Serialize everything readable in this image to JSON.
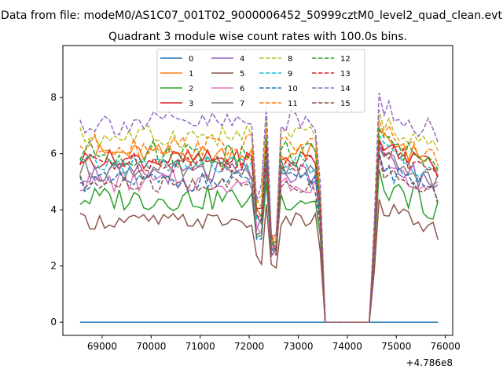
{
  "chart_data": {
    "type": "line",
    "suptitle": "Data from file: modeM0/AS1C07_001T02_9000006452_50999cztM0_level2_quad_clean.evt",
    "title": "Quadrant 3 module wise count rates with 100.0s bins.",
    "xlabel": "",
    "ylabel": "",
    "x_offset_label": "+4.786e8",
    "xlim": [
      68200,
      76150
    ],
    "ylim": [
      -0.47,
      9.85
    ],
    "xticks": [
      69000,
      70000,
      71000,
      72000,
      73000,
      74000,
      75000,
      76000
    ],
    "xtick_labels": [
      "69000",
      "70000",
      "71000",
      "72000",
      "73000",
      "74000",
      "75000",
      "76000"
    ],
    "yticks": [
      0,
      2,
      4,
      6,
      8
    ],
    "ytick_labels": [
      "0",
      "2",
      "4",
      "6",
      "8"
    ],
    "legend": {
      "position": "top-center",
      "columns": 4
    },
    "x_range": {
      "start": 68550,
      "step": 100,
      "end": 75850
    },
    "series": [
      {
        "name": "0",
        "color": "#1f77b4",
        "dash": "solid",
        "base": 0.0,
        "amp": 0.0,
        "dip": 0.0
      },
      {
        "name": "1",
        "color": "#ff7f0e",
        "dash": "solid",
        "base": 6.0,
        "amp": 0.35,
        "dip": 3.0
      },
      {
        "name": "2",
        "color": "#2ca02c",
        "dash": "solid",
        "base": 4.4,
        "amp": 0.45,
        "dip": 2.6
      },
      {
        "name": "3",
        "color": "#d62728",
        "dash": "solid",
        "base": 5.8,
        "amp": 0.35,
        "dip": 2.8
      },
      {
        "name": "4",
        "color": "#9467bd",
        "dash": "solid",
        "base": 5.3,
        "amp": 0.4,
        "dip": 2.5
      },
      {
        "name": "5",
        "color": "#8c564b",
        "dash": "solid",
        "base": 3.6,
        "amp": 0.3,
        "dip": 2.2
      },
      {
        "name": "6",
        "color": "#e377c2",
        "dash": "solid",
        "base": 5.0,
        "amp": 0.4,
        "dip": 2.5
      },
      {
        "name": "7",
        "color": "#7f7f7f",
        "dash": "solid",
        "base": 5.4,
        "amp": 0.4,
        "dip": 2.6
      },
      {
        "name": "8",
        "color": "#bcbd22",
        "dash": "dashed",
        "base": 6.6,
        "amp": 0.4,
        "dip": 3.0
      },
      {
        "name": "9",
        "color": "#17becf",
        "dash": "dashed",
        "base": 5.6,
        "amp": 0.35,
        "dip": 2.7
      },
      {
        "name": "10",
        "color": "#1f77b4",
        "dash": "dashed",
        "base": 5.0,
        "amp": 0.35,
        "dip": 2.6
      },
      {
        "name": "11",
        "color": "#ff7f0e",
        "dash": "dashed",
        "base": 6.3,
        "amp": 0.4,
        "dip": 3.0
      },
      {
        "name": "12",
        "color": "#2ca02c",
        "dash": "dashed",
        "base": 6.0,
        "amp": 0.5,
        "dip": 2.9
      },
      {
        "name": "13",
        "color": "#d62728",
        "dash": "dashed",
        "base": 5.7,
        "amp": 0.35,
        "dip": 2.8
      },
      {
        "name": "14",
        "color": "#9467bd",
        "dash": "dashed",
        "base": 7.1,
        "amp": 0.45,
        "dip": 3.2
      },
      {
        "name": "15",
        "color": "#8c564b",
        "dash": "dashed",
        "base": 4.9,
        "amp": 0.35,
        "dip": 2.5
      }
    ],
    "gap": {
      "start": 73550,
      "end": 74450
    }
  }
}
